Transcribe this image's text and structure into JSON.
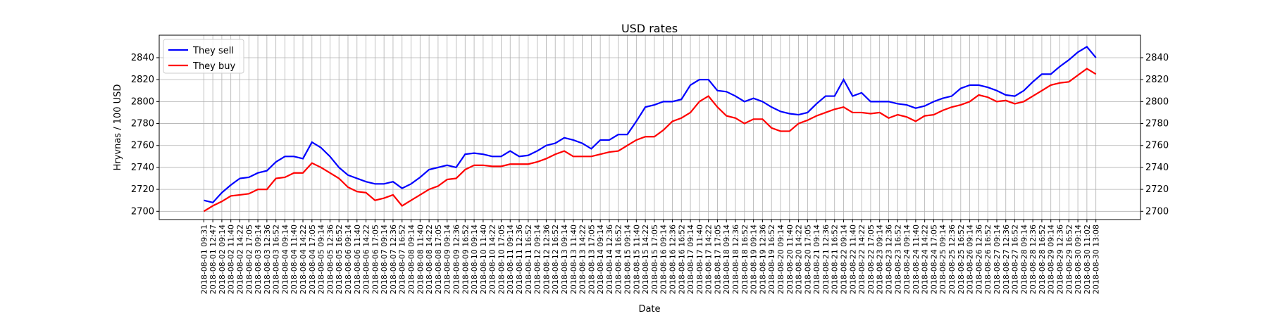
{
  "chart_data": {
    "type": "line",
    "title": "USD rates",
    "xlabel": "Date",
    "ylabel": "Hryvnas / 100 USD",
    "categories": [
      "2018-08-01 09:31",
      "2018-08-01 12:47",
      "2018-08-02 09:14",
      "2018-08-02 11:40",
      "2018-08-02 14:22",
      "2018-08-02 17:05",
      "2018-08-03 09:14",
      "2018-08-03 12:36",
      "2018-08-03 16:52",
      "2018-08-04 09:14",
      "2018-08-04 11:40",
      "2018-08-04 14:22",
      "2018-08-04 17:05",
      "2018-08-05 09:14",
      "2018-08-05 12:36",
      "2018-08-05 16:52",
      "2018-08-06 09:14",
      "2018-08-06 11:40",
      "2018-08-06 14:22",
      "2018-08-06 17:05",
      "2018-08-07 09:14",
      "2018-08-07 12:36",
      "2018-08-07 16:52",
      "2018-08-08 09:14",
      "2018-08-08 11:40",
      "2018-08-08 14:22",
      "2018-08-08 17:05",
      "2018-08-09 09:14",
      "2018-08-09 12:36",
      "2018-08-09 16:52",
      "2018-08-10 09:14",
      "2018-08-10 11:40",
      "2018-08-10 14:22",
      "2018-08-10 17:05",
      "2018-08-11 09:14",
      "2018-08-11 12:36",
      "2018-08-11 16:52",
      "2018-08-12 09:14",
      "2018-08-12 12:36",
      "2018-08-12 16:52",
      "2018-08-13 09:14",
      "2018-08-13 11:40",
      "2018-08-13 14:22",
      "2018-08-13 17:05",
      "2018-08-14 09:14",
      "2018-08-14 12:36",
      "2018-08-14 16:52",
      "2018-08-15 09:14",
      "2018-08-15 11:40",
      "2018-08-15 14:22",
      "2018-08-15 17:05",
      "2018-08-16 09:14",
      "2018-08-16 12:36",
      "2018-08-16 16:52",
      "2018-08-17 09:14",
      "2018-08-17 11:40",
      "2018-08-17 14:22",
      "2018-08-17 17:05",
      "2018-08-18 09:14",
      "2018-08-18 12:36",
      "2018-08-18 16:52",
      "2018-08-19 09:14",
      "2018-08-19 12:36",
      "2018-08-19 16:52",
      "2018-08-20 09:14",
      "2018-08-20 11:40",
      "2018-08-20 14:22",
      "2018-08-20 17:05",
      "2018-08-21 09:14",
      "2018-08-21 12:36",
      "2018-08-21 16:52",
      "2018-08-22 09:14",
      "2018-08-22 11:40",
      "2018-08-22 14:22",
      "2018-08-22 17:05",
      "2018-08-23 09:14",
      "2018-08-23 12:36",
      "2018-08-23 16:52",
      "2018-08-24 09:14",
      "2018-08-24 11:40",
      "2018-08-24 14:22",
      "2018-08-24 17:05",
      "2018-08-25 09:14",
      "2018-08-25 12:36",
      "2018-08-25 16:52",
      "2018-08-26 09:14",
      "2018-08-26 12:36",
      "2018-08-26 16:52",
      "2018-08-27 09:14",
      "2018-08-27 12:36",
      "2018-08-27 16:52",
      "2018-08-28 09:14",
      "2018-08-28 12:36",
      "2018-08-28 16:52",
      "2018-08-29 09:14",
      "2018-08-29 12:36",
      "2018-08-29 16:52",
      "2018-08-30 09:14",
      "2018-08-30 11:02",
      "2018-08-30 13:08"
    ],
    "series": [
      {
        "name": "They sell",
        "color": "#0000ff",
        "values": [
          2710,
          2708,
          2717,
          2724,
          2730,
          2731,
          2735,
          2737,
          2745,
          2750,
          2750,
          2748,
          2763,
          2758,
          2750,
          2740,
          2733,
          2730,
          2727,
          2725,
          2725,
          2727,
          2721,
          2725,
          2731,
          2738,
          2740,
          2742,
          2740,
          2752,
          2753,
          2752,
          2750,
          2750,
          2755,
          2750,
          2751,
          2755,
          2760,
          2762,
          2767,
          2765,
          2762,
          2757,
          2765,
          2765,
          2770,
          2770,
          2782,
          2795,
          2797,
          2800,
          2800,
          2802,
          2815,
          2820,
          2820,
          2810,
          2809,
          2805,
          2800,
          2803,
          2800,
          2795,
          2791,
          2789,
          2788,
          2790,
          2798,
          2805,
          2805,
          2820,
          2805,
          2808,
          2800,
          2800,
          2800,
          2798,
          2797,
          2794,
          2796,
          2800,
          2803,
          2805,
          2812,
          2815,
          2815,
          2813,
          2810,
          2806,
          2805,
          2810,
          2818,
          2825,
          2825,
          2832,
          2838,
          2845,
          2850,
          2840
        ]
      },
      {
        "name": "They buy",
        "color": "#ff0000",
        "values": [
          2700,
          2705,
          2709,
          2714,
          2715,
          2716,
          2720,
          2720,
          2730,
          2731,
          2735,
          2735,
          2744,
          2740,
          2735,
          2730,
          2722,
          2718,
          2717,
          2710,
          2712,
          2715,
          2705,
          2710,
          2715,
          2720,
          2723,
          2729,
          2730,
          2738,
          2742,
          2742,
          2741,
          2741,
          2743,
          2743,
          2743,
          2745,
          2748,
          2752,
          2755,
          2750,
          2750,
          2750,
          2752,
          2754,
          2755,
          2760,
          2765,
          2768,
          2768,
          2774,
          2782,
          2785,
          2790,
          2800,
          2805,
          2795,
          2787,
          2785,
          2780,
          2784,
          2784,
          2776,
          2773,
          2773,
          2780,
          2783,
          2787,
          2790,
          2793,
          2795,
          2790,
          2790,
          2789,
          2790,
          2785,
          2788,
          2786,
          2782,
          2787,
          2788,
          2792,
          2795,
          2797,
          2800,
          2806,
          2804,
          2800,
          2801,
          2798,
          2800,
          2805,
          2810,
          2815,
          2817,
          2818,
          2824,
          2830,
          2825
        ]
      }
    ],
    "ylim": [
      2692.5,
      2860.5
    ],
    "yticks": [
      2700,
      2720,
      2740,
      2760,
      2780,
      2800,
      2820,
      2840
    ],
    "grid": true,
    "legend": "upper left"
  }
}
